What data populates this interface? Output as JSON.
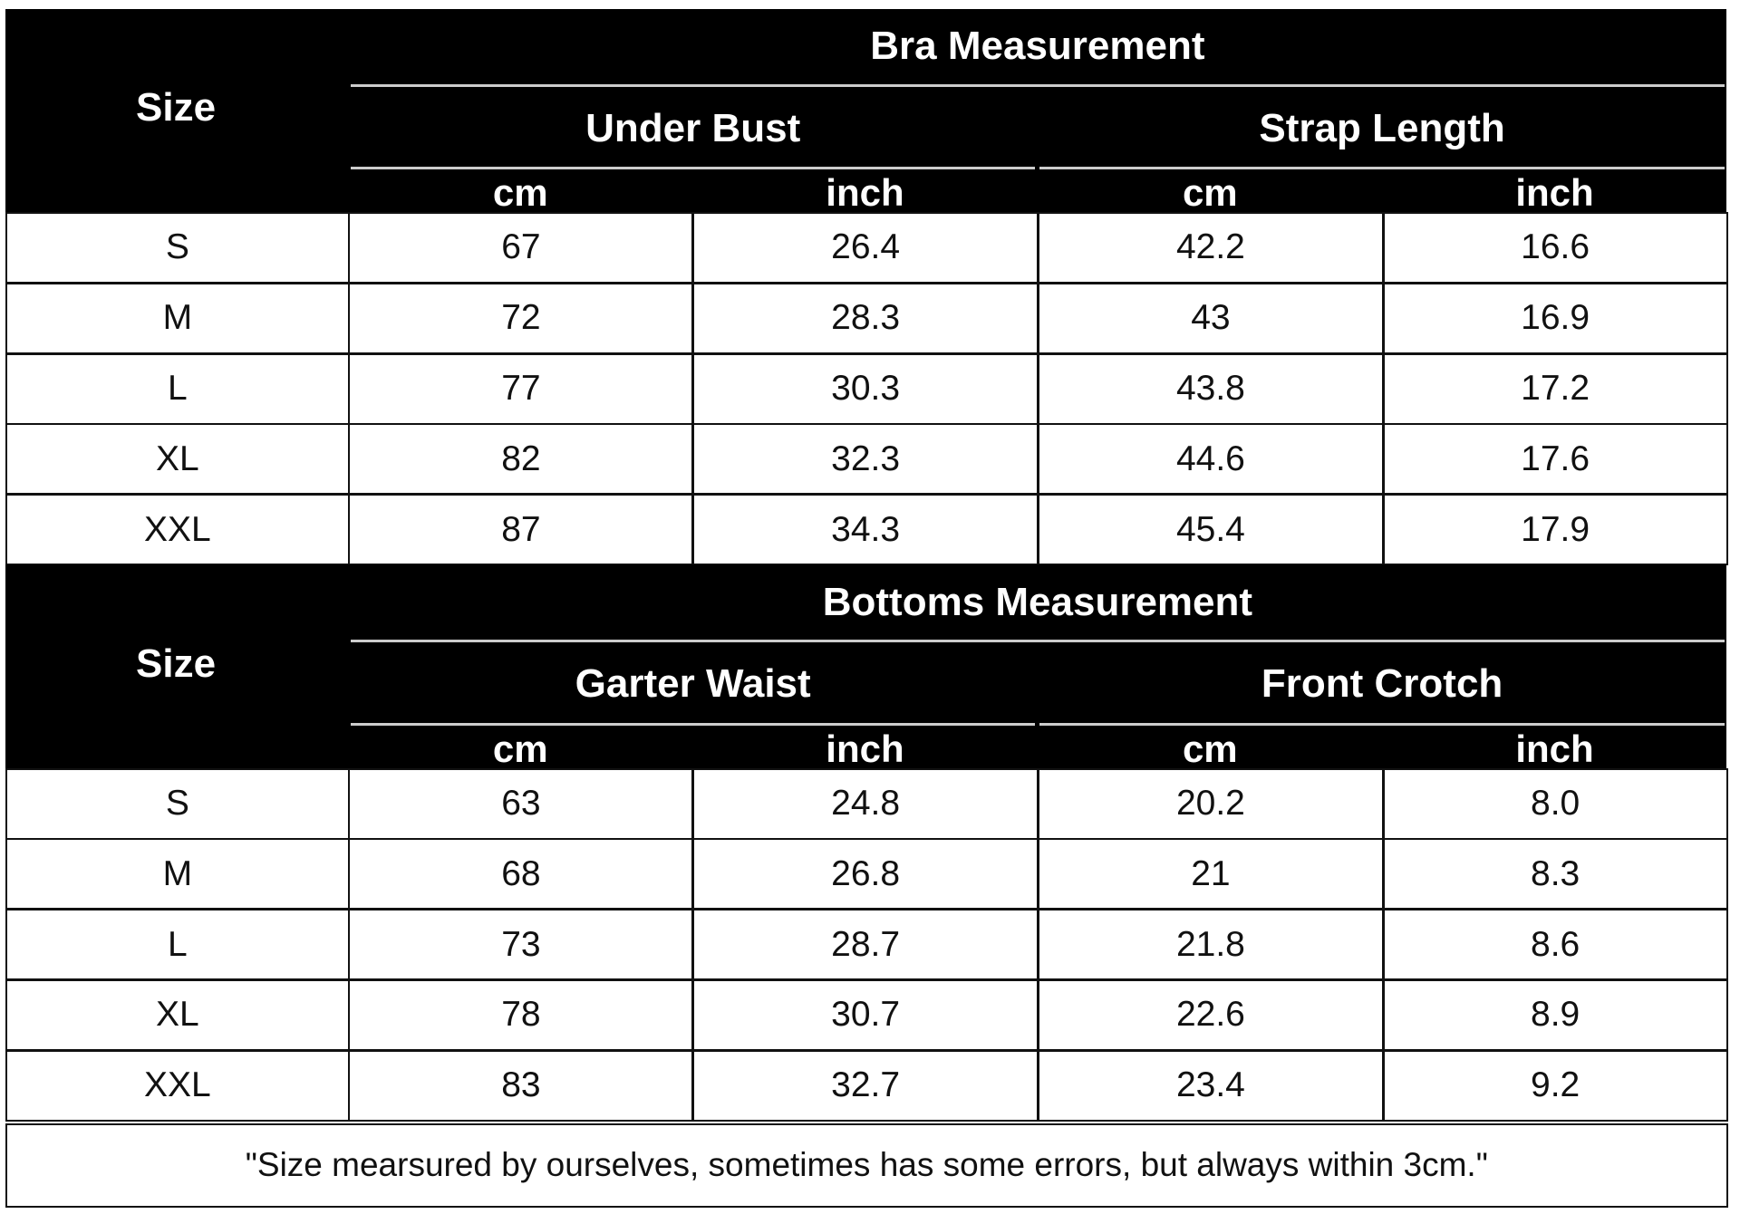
{
  "sections": [
    {
      "size_label": "Size",
      "title": "Bra Measurement",
      "groups": [
        "Under Bust",
        "Strap Length"
      ],
      "units": [
        "cm",
        "inch",
        "cm",
        "inch"
      ],
      "rows": [
        [
          "S",
          "67",
          "26.4",
          "42.2",
          "16.6"
        ],
        [
          "M",
          "72",
          "28.3",
          "43",
          "16.9"
        ],
        [
          "L",
          "77",
          "30.3",
          "43.8",
          "17.2"
        ],
        [
          "XL",
          "82",
          "32.3",
          "44.6",
          "17.6"
        ],
        [
          "XXL",
          "87",
          "34.3",
          "45.4",
          "17.9"
        ]
      ]
    },
    {
      "size_label": "Size",
      "title": "Bottoms Measurement",
      "groups": [
        "Garter Waist",
        "Front Crotch"
      ],
      "units": [
        "cm",
        "inch",
        "cm",
        "inch"
      ],
      "rows": [
        [
          "S",
          "63",
          "24.8",
          "20.2",
          "8.0"
        ],
        [
          "M",
          "68",
          "26.8",
          "21",
          "8.3"
        ],
        [
          "L",
          "73",
          "28.7",
          "21.8",
          "8.6"
        ],
        [
          "XL",
          "78",
          "30.7",
          "22.6",
          "8.9"
        ],
        [
          "XXL",
          "83",
          "32.7",
          "23.4",
          "9.2"
        ]
      ]
    }
  ],
  "note": "\"Size mearsured by ourselves, sometimes has some errors, but always within 3cm.\""
}
